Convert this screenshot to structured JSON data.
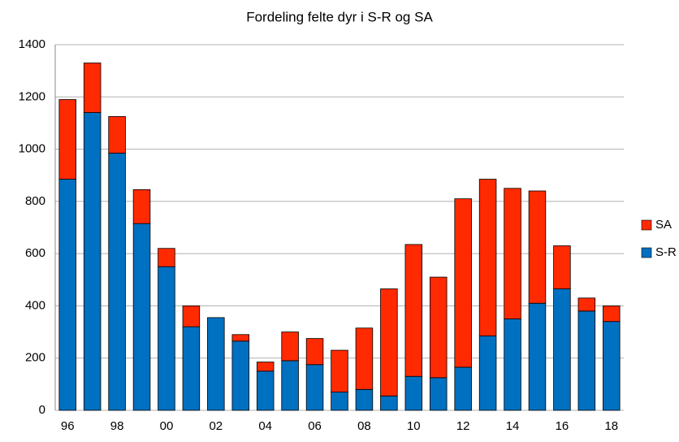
{
  "chart_data": {
    "type": "stacked-bar",
    "title": "Fordeling felte dyr i S-R og SA",
    "categories": [
      "96",
      null,
      "98",
      null,
      "00",
      null,
      "02",
      null,
      "04",
      null,
      "06",
      null,
      "08",
      null,
      "10",
      null,
      "12",
      null,
      "14",
      null,
      "16",
      null,
      "18"
    ],
    "series": [
      {
        "name": "S-R",
        "color": "#0070c0",
        "values": [
          885,
          1140,
          985,
          715,
          550,
          320,
          355,
          265,
          150,
          190,
          175,
          70,
          80,
          55,
          130,
          125,
          165,
          285,
          350,
          410,
          465,
          380,
          340
        ]
      },
      {
        "name": "SA",
        "color": "#ff2a00",
        "values": [
          305,
          190,
          140,
          130,
          70,
          80,
          0,
          25,
          35,
          110,
          100,
          160,
          235,
          410,
          505,
          385,
          645,
          600,
          500,
          430,
          165,
          50,
          60
        ]
      }
    ],
    "ylim": [
      0,
      1400
    ],
    "yticks": [
      0,
      200,
      400,
      600,
      800,
      1000,
      1200,
      1400
    ],
    "grid": true,
    "legend": "right"
  }
}
